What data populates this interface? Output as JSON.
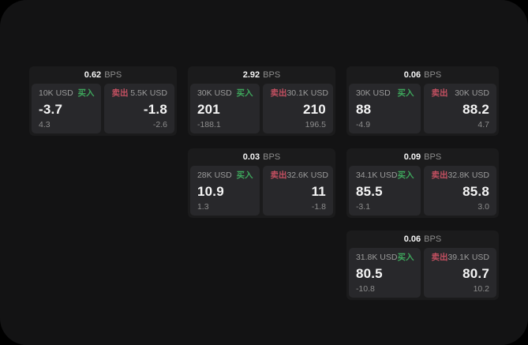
{
  "labels": {
    "bps_unit": "BPS",
    "buy": "买入",
    "sell": "卖出"
  },
  "colors": {
    "page_bg": "#131314",
    "card_bg": "#1b1b1c",
    "panel_bg": "#28282b",
    "buy_green": "#3ea65c",
    "sell_red": "#c35061",
    "text_primary": "#f5f5f5",
    "text_secondary": "#9c9c9c",
    "text_muted": "#8d8d8d"
  },
  "cards": [
    {
      "bps": "0.62",
      "buy": {
        "amount": "10K USD",
        "value": "-3.7",
        "sub": "4.3"
      },
      "sell": {
        "amount": "5.5K USD",
        "value": "-1.8",
        "sub": "-2.6"
      }
    },
    {
      "bps": "2.92",
      "buy": {
        "amount": "30K USD",
        "value": "201",
        "sub": "-188.1"
      },
      "sell": {
        "amount": "30.1K USD",
        "value": "210",
        "sub": "196.5"
      }
    },
    {
      "bps": "0.06",
      "buy": {
        "amount": "30K USD",
        "value": "88",
        "sub": "-4.9"
      },
      "sell": {
        "amount": "30K USD",
        "value": "88.2",
        "sub": "4.7"
      }
    },
    {
      "bps": "0.03",
      "buy": {
        "amount": "28K USD",
        "value": "10.9",
        "sub": "1.3"
      },
      "sell": {
        "amount": "32.6K USD",
        "value": "11",
        "sub": "-1.8"
      }
    },
    {
      "bps": "0.09",
      "buy": {
        "amount": "34.1K USD",
        "value": "85.5",
        "sub": "-3.1"
      },
      "sell": {
        "amount": "32.8K USD",
        "value": "85.8",
        "sub": "3.0"
      }
    },
    {
      "bps": "0.06",
      "buy": {
        "amount": "31.8K USD",
        "value": "80.5",
        "sub": "-10.8"
      },
      "sell": {
        "amount": "39.1K USD",
        "value": "80.7",
        "sub": "10.2"
      }
    }
  ]
}
